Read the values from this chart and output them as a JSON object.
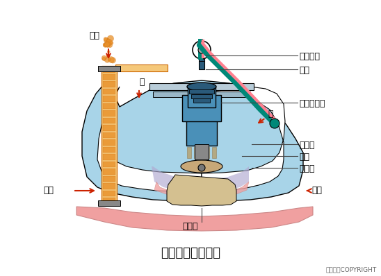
{
  "title": "水下空气扩散装置",
  "copyright": "东方仿真COPYRIGHT",
  "labels": {
    "kongqi": "空气",
    "shui1": "水",
    "shui2": "水",
    "qipao_left": "气泡",
    "qipao_right": "气泡",
    "baoqi": "曝气口",
    "shuizhong_dianjianji": "水中发电机",
    "shuizhong_diaosuo": "水中吊索",
    "diaosuo": "吊索",
    "xiruzhao": "吸入罩",
    "zhuanzi": "转子",
    "paichu_zhao": "排出罩"
  },
  "colors": {
    "bg": "#ffffff",
    "body_blue": "#4a90b8",
    "body_blue_light": "#a8d4e8",
    "motor_blue_dark": "#2a5a7a",
    "orange_pipe": "#e8902a",
    "orange_fill": "#f5c87a",
    "pink_base": "#f0a0a0",
    "purple_water": "#b0a8d0",
    "rotor_tan": "#c8a878",
    "teal_cable": "#008878",
    "pink_cable": "#ff8090",
    "arrow_red": "#cc2200",
    "label_line": "#444444"
  }
}
